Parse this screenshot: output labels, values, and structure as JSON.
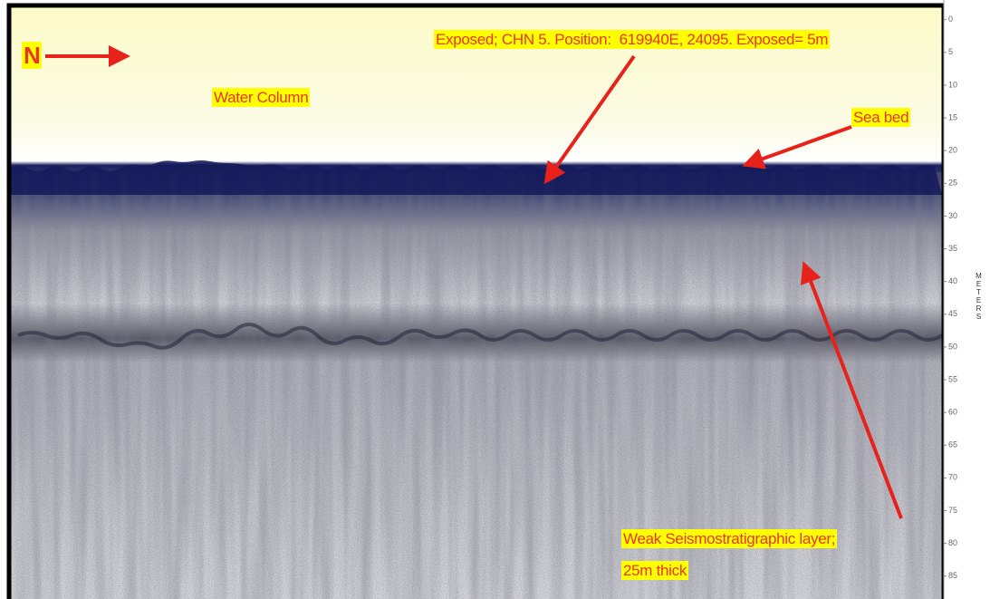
{
  "labels": {
    "north": "N",
    "water_column": "Water Column",
    "exposed": "Exposed; CHN 5. Position:  619940E, 24095. Exposed= 5m",
    "sea_bed": "Sea bed",
    "weak_layer": [
      "Weak Seismostratigraphic layer;",
      "25m thick"
    ]
  },
  "depth_axis": {
    "title": "METERS",
    "ylim": [
      -1.9,
      88.5
    ],
    "yticks": [
      0,
      5,
      10,
      15,
      20,
      25,
      30,
      35,
      40,
      45,
      50,
      55,
      60,
      65,
      70,
      75,
      80,
      85
    ]
  }
}
